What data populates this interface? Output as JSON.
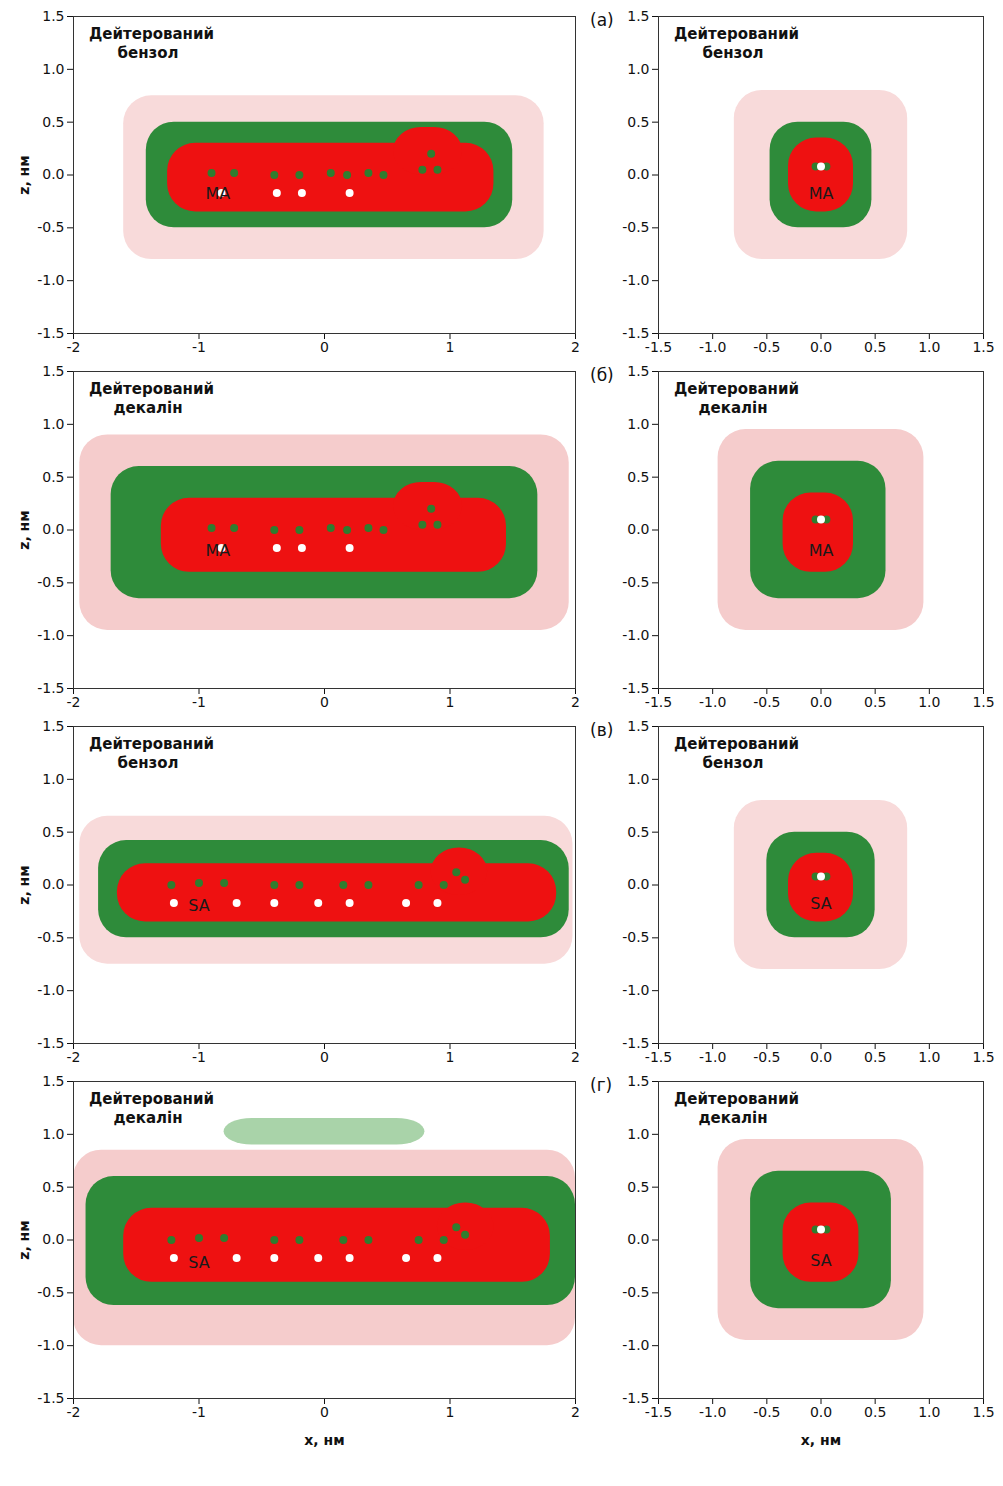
{
  "chart_data": [
    {
      "type": "heatmap",
      "panel": "(а)",
      "solvent": "Дейтерований бензол",
      "ylabel": "z, нм",
      "xlim": [
        -2,
        2
      ],
      "ylim": [
        -1.5,
        1.5
      ],
      "xticks": [
        -2,
        -1,
        0,
        1,
        2
      ],
      "yticks": [
        -1.5,
        {
          "value": -1,
          "label": "-1.0"
        },
        -0.5,
        {
          "value": 0,
          "label": "0.0"
        },
        0.5,
        {
          "value": 1,
          "label": "1.0"
        },
        1.5
      ],
      "regions": [
        {
          "color": "#f8dada",
          "x": [
            -1.6,
            1.75
          ],
          "z": [
            -0.8,
            0.75
          ]
        },
        {
          "color": "#2e8b3a",
          "x": [
            -1.42,
            1.5
          ],
          "z": [
            -0.5,
            0.5
          ]
        },
        {
          "color": "#ee1111",
          "x": [
            -1.25,
            1.35
          ],
          "z": [
            -0.35,
            0.3
          ]
        },
        {
          "color": "#ee1111",
          "x": [
            0.55,
            1.1
          ],
          "z": [
            0.0,
            0.45
          ]
        }
      ],
      "green_atoms": {
        "x": [
          -0.9,
          -0.72,
          -0.4,
          -0.2,
          0.05,
          0.18,
          0.35,
          0.47,
          0.78,
          0.85,
          0.9
        ],
        "z": [
          0.02,
          0.02,
          0.0,
          0.0,
          0.02,
          0.0,
          0.02,
          0.0,
          0.05,
          0.2,
          0.05
        ]
      },
      "white_atoms": {
        "x": [
          -0.82,
          -0.38,
          -0.18,
          0.2
        ],
        "z": [
          -0.17,
          -0.17,
          -0.17,
          -0.17
        ]
      },
      "label": {
        "text": "MA",
        "x": -0.85,
        "z": -0.18
      }
    },
    {
      "type": "heatmap",
      "solvent": "Дейтерований бензол",
      "xlim": [
        -1.5,
        1.5
      ],
      "ylim": [
        -1.5,
        1.5
      ],
      "xticks": [
        -1.5,
        {
          "value": -1,
          "label": "-1.0"
        },
        -0.5,
        {
          "value": 0,
          "label": "0.0"
        },
        0.5,
        {
          "value": 1,
          "label": "1.0"
        },
        1.5
      ],
      "yticks": [
        -1.5,
        {
          "value": -1,
          "label": "-1.0"
        },
        -0.5,
        {
          "value": 0,
          "label": "0.0"
        },
        0.5,
        {
          "value": 1,
          "label": "1.0"
        },
        1.5
      ],
      "regions": [
        {
          "color": "#f8dada",
          "x": [
            -0.8,
            0.8
          ],
          "z": [
            -0.8,
            0.8
          ]
        },
        {
          "color": "#2e8b3a",
          "x": [
            -0.47,
            0.47
          ],
          "z": [
            -0.5,
            0.5
          ]
        },
        {
          "color": "#ee1111",
          "x": [
            -0.3,
            0.3
          ],
          "z": [
            -0.35,
            0.35
          ]
        }
      ],
      "green_atoms": {
        "x": [
          -0.05,
          0.05
        ],
        "z": [
          0.08,
          0.08
        ]
      },
      "white_atoms": {
        "x": [
          0.0
        ],
        "z": [
          0.08
        ]
      },
      "label": {
        "text": "MA",
        "x": 0.0,
        "z": -0.18
      }
    },
    {
      "type": "heatmap",
      "panel": "(б)",
      "solvent": "Дейтерований декалін",
      "ylabel": "z, нм",
      "xlim": [
        -2,
        2
      ],
      "ylim": [
        -1.5,
        1.5
      ],
      "xticks": [
        -2,
        -1,
        0,
        1,
        2
      ],
      "yticks": [
        -1.5,
        {
          "value": -1,
          "label": "-1.0"
        },
        -0.5,
        {
          "value": 0,
          "label": "0.0"
        },
        0.5,
        {
          "value": 1,
          "label": "1.0"
        },
        1.5
      ],
      "regions": [
        {
          "color": "#f5cccc",
          "x": [
            -1.95,
            1.95
          ],
          "z": [
            -0.95,
            0.9
          ]
        },
        {
          "color": "#2e8b3a",
          "x": [
            -1.7,
            1.7
          ],
          "z": [
            -0.65,
            0.6
          ]
        },
        {
          "color": "#ee1111",
          "x": [
            -1.3,
            1.45
          ],
          "z": [
            -0.4,
            0.3
          ]
        },
        {
          "color": "#ee1111",
          "x": [
            0.55,
            1.1
          ],
          "z": [
            0.0,
            0.45
          ]
        }
      ],
      "green_atoms": {
        "x": [
          -0.9,
          -0.72,
          -0.4,
          -0.2,
          0.05,
          0.18,
          0.35,
          0.47,
          0.78,
          0.85,
          0.9
        ],
        "z": [
          0.02,
          0.02,
          0.0,
          0.0,
          0.02,
          0.0,
          0.02,
          0.0,
          0.05,
          0.2,
          0.05
        ]
      },
      "white_atoms": {
        "x": [
          -0.82,
          -0.38,
          -0.18,
          0.2
        ],
        "z": [
          -0.17,
          -0.17,
          -0.17,
          -0.17
        ]
      },
      "label": {
        "text": "MA",
        "x": -0.85,
        "z": -0.2
      }
    },
    {
      "type": "heatmap",
      "solvent": "Дейтерований декалін",
      "xlim": [
        -1.5,
        1.5
      ],
      "ylim": [
        -1.5,
        1.5
      ],
      "xticks": [
        -1.5,
        {
          "value": -1,
          "label": "-1.0"
        },
        -0.5,
        {
          "value": 0,
          "label": "0.0"
        },
        0.5,
        {
          "value": 1,
          "label": "1.0"
        },
        1.5
      ],
      "yticks": [
        -1.5,
        {
          "value": -1,
          "label": "-1.0"
        },
        -0.5,
        {
          "value": 0,
          "label": "0.0"
        },
        0.5,
        {
          "value": 1,
          "label": "1.0"
        },
        1.5
      ],
      "regions": [
        {
          "color": "#f5cccc",
          "x": [
            -0.95,
            0.95
          ],
          "z": [
            -0.95,
            0.95
          ]
        },
        {
          "color": "#2e8b3a",
          "x": [
            -0.65,
            0.6
          ],
          "z": [
            -0.65,
            0.65
          ]
        },
        {
          "color": "#ee1111",
          "x": [
            -0.35,
            0.3
          ],
          "z": [
            -0.4,
            0.35
          ]
        }
      ],
      "green_atoms": {
        "x": [
          -0.05,
          0.05
        ],
        "z": [
          0.1,
          0.1
        ]
      },
      "white_atoms": {
        "x": [
          0.0
        ],
        "z": [
          0.1
        ]
      },
      "label": {
        "text": "MA",
        "x": 0.0,
        "z": -0.2
      }
    },
    {
      "type": "heatmap",
      "panel": "(в)",
      "solvent": "Дейтерований бензол",
      "ylabel": "z, нм",
      "xlim": [
        -2,
        2
      ],
      "ylim": [
        -1.5,
        1.5
      ],
      "xticks": [
        -2,
        -1,
        0,
        1,
        2
      ],
      "yticks": [
        -1.5,
        {
          "value": -1,
          "label": "-1.0"
        },
        -0.5,
        {
          "value": 0,
          "label": "0.0"
        },
        0.5,
        {
          "value": 1,
          "label": "1.0"
        },
        1.5
      ],
      "regions": [
        {
          "color": "#f8dada",
          "x": [
            -1.95,
            1.98
          ],
          "z": [
            -0.75,
            0.65
          ]
        },
        {
          "color": "#2e8b3a",
          "x": [
            -1.8,
            1.95
          ],
          "z": [
            -0.5,
            0.42
          ]
        },
        {
          "color": "#ee1111",
          "x": [
            -1.65,
            1.85
          ],
          "z": [
            -0.35,
            0.2
          ]
        },
        {
          "color": "#ee1111",
          "x": [
            0.85,
            1.3
          ],
          "z": [
            -0.1,
            0.35
          ]
        }
      ],
      "green_atoms": {
        "x": [
          -1.22,
          -1.0,
          -0.8,
          -0.4,
          -0.2,
          0.15,
          0.35,
          0.75,
          0.95,
          1.05,
          1.12
        ],
        "z": [
          0.0,
          0.02,
          0.02,
          0.0,
          0.0,
          0.0,
          0.0,
          0.0,
          0.0,
          0.12,
          0.05
        ]
      },
      "white_atoms": {
        "x": [
          -1.2,
          -0.7,
          -0.4,
          -0.05,
          0.2,
          0.65,
          0.9
        ],
        "z": [
          -0.17,
          -0.17,
          -0.17,
          -0.17,
          -0.17,
          -0.17,
          -0.17
        ]
      },
      "label": {
        "text": "SA",
        "x": -1.0,
        "z": -0.2
      }
    },
    {
      "type": "heatmap",
      "solvent": "Дейтерований бензол",
      "xlim": [
        -1.5,
        1.5
      ],
      "ylim": [
        -1.5,
        1.5
      ],
      "xticks": [
        -1.5,
        {
          "value": -1,
          "label": "-1.0"
        },
        -0.5,
        {
          "value": 0,
          "label": "0.0"
        },
        0.5,
        {
          "value": 1,
          "label": "1.0"
        },
        1.5
      ],
      "yticks": [
        -1.5,
        {
          "value": -1,
          "label": "-1.0"
        },
        -0.5,
        {
          "value": 0,
          "label": "0.0"
        },
        0.5,
        {
          "value": 1,
          "label": "1.0"
        },
        1.5
      ],
      "regions": [
        {
          "color": "#f8dada",
          "x": [
            -0.8,
            0.8
          ],
          "z": [
            -0.8,
            0.8
          ]
        },
        {
          "color": "#2e8b3a",
          "x": [
            -0.5,
            0.5
          ],
          "z": [
            -0.5,
            0.5
          ]
        },
        {
          "color": "#ee1111",
          "x": [
            -0.3,
            0.3
          ],
          "z": [
            -0.35,
            0.3
          ]
        }
      ],
      "green_atoms": {
        "x": [
          -0.05,
          0.05
        ],
        "z": [
          0.08,
          0.08
        ]
      },
      "white_atoms": {
        "x": [
          0.0
        ],
        "z": [
          0.08
        ]
      },
      "label": {
        "text": "SA",
        "x": 0.0,
        "z": -0.18
      }
    },
    {
      "type": "heatmap",
      "panel": "(г)",
      "solvent": "Дейтерований декалін",
      "ylabel": "z, нм",
      "xlabel": "x, нм",
      "xlim": [
        -2,
        2
      ],
      "ylim": [
        -1.5,
        1.5
      ],
      "xticks": [
        -2,
        -1,
        0,
        1,
        2
      ],
      "yticks": [
        -1.5,
        {
          "value": -1,
          "label": "-1.0"
        },
        -0.5,
        {
          "value": 0,
          "label": "0.0"
        },
        0.5,
        {
          "value": 1,
          "label": "1.0"
        },
        1.5
      ],
      "regions": [
        {
          "color": "#f5cccc",
          "x": [
            -2.0,
            2.0
          ],
          "z": [
            -1.0,
            0.85
          ]
        },
        {
          "color": "#a9d3a9",
          "x": [
            -0.8,
            0.8
          ],
          "z": [
            0.9,
            1.15
          ]
        },
        {
          "color": "#2e8b3a",
          "x": [
            -1.9,
            2.0
          ],
          "z": [
            -0.62,
            0.6
          ]
        },
        {
          "color": "#ee1111",
          "x": [
            -1.6,
            1.8
          ],
          "z": [
            -0.4,
            0.3
          ]
        },
        {
          "color": "#ee1111",
          "x": [
            0.9,
            1.35
          ],
          "z": [
            -0.1,
            0.35
          ]
        }
      ],
      "green_atoms": {
        "x": [
          -1.22,
          -1.0,
          -0.8,
          -0.4,
          -0.2,
          0.15,
          0.35,
          0.75,
          0.95,
          1.05,
          1.12
        ],
        "z": [
          0.0,
          0.02,
          0.02,
          0.0,
          0.0,
          0.0,
          0.0,
          0.0,
          0.0,
          0.12,
          0.05
        ]
      },
      "white_atoms": {
        "x": [
          -1.2,
          -0.7,
          -0.4,
          -0.05,
          0.2,
          0.65,
          0.9
        ],
        "z": [
          -0.17,
          -0.17,
          -0.17,
          -0.17,
          -0.17,
          -0.17,
          -0.17
        ]
      },
      "label": {
        "text": "SA",
        "x": -1.0,
        "z": -0.22
      }
    },
    {
      "type": "heatmap",
      "solvent": "Дейтерований декалін",
      "xlabel": "x, нм",
      "xlim": [
        -1.5,
        1.5
      ],
      "ylim": [
        -1.5,
        1.5
      ],
      "xticks": [
        -1.5,
        {
          "value": -1,
          "label": "-1.0"
        },
        -0.5,
        {
          "value": 0,
          "label": "0.0"
        },
        0.5,
        {
          "value": 1,
          "label": "1.0"
        },
        1.5
      ],
      "yticks": [
        -1.5,
        {
          "value": -1,
          "label": "-1.0"
        },
        -0.5,
        {
          "value": 0,
          "label": "0.0"
        },
        0.5,
        {
          "value": 1,
          "label": "1.0"
        },
        1.5
      ],
      "regions": [
        {
          "color": "#f5cccc",
          "x": [
            -0.95,
            0.95
          ],
          "z": [
            -0.95,
            0.95
          ]
        },
        {
          "color": "#2e8b3a",
          "x": [
            -0.65,
            0.65
          ],
          "z": [
            -0.65,
            0.65
          ]
        },
        {
          "color": "#ee1111",
          "x": [
            -0.35,
            0.35
          ],
          "z": [
            -0.4,
            0.35
          ]
        }
      ],
      "green_atoms": {
        "x": [
          -0.05,
          0.05
        ],
        "z": [
          0.1,
          0.1
        ]
      },
      "white_atoms": {
        "x": [
          0.0
        ],
        "z": [
          0.1
        ]
      },
      "label": {
        "text": "SA",
        "x": 0.0,
        "z": -0.2
      }
    }
  ]
}
